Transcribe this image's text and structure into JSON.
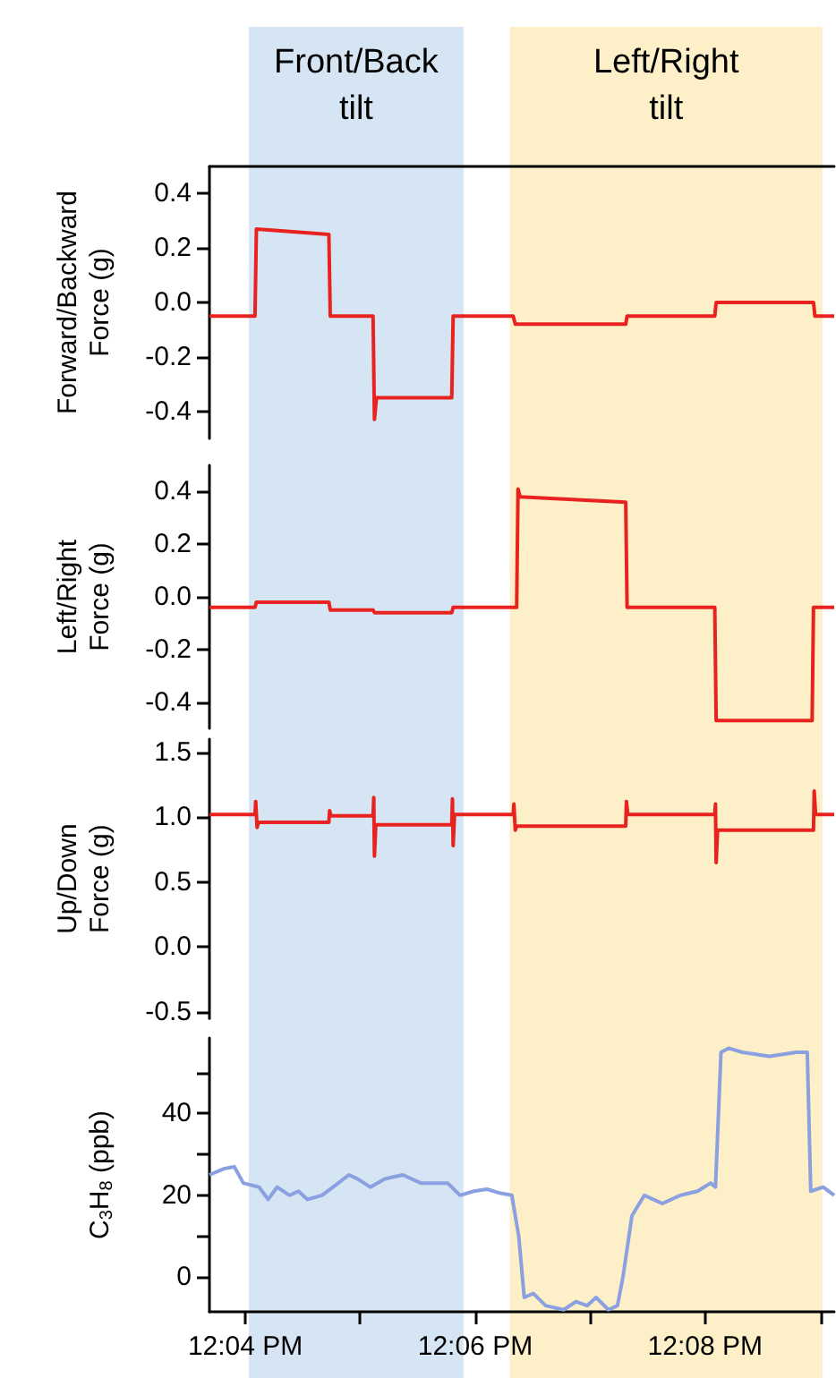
{
  "chart_data": [
    {
      "type": "line",
      "ylabel": "Forward/Backward\nForce (g)",
      "xlim": [
        12.0615,
        12.152
      ],
      "ylim": [
        -0.5,
        0.5
      ],
      "yticks": [
        -0.4,
        -0.2,
        {
          "value": 0,
          "label": "0.0"
        },
        0.2,
        0.4
      ],
      "tick_labels": "y",
      "bands": [
        {
          "axis": "x",
          "from": 12.0672,
          "to": 12.0983,
          "label": "Front/Back\ntilt",
          "color": "#d6e5f3"
        },
        {
          "axis": "x",
          "from": 12.105,
          "to": 12.1503,
          "label": "Left/Right\ntilt",
          "color": "#fdefc7"
        }
      ],
      "series": [
        {
          "color": "#e8231f",
          "x": [
            12.0615,
            12.0681,
            12.0683,
            12.0788,
            12.079,
            12.0852,
            12.0854,
            12.0857,
            12.0966,
            12.0968,
            12.1055,
            12.1058,
            12.1218,
            12.122,
            12.1347,
            12.1349,
            12.149,
            12.1492,
            12.152
          ],
          "values": [
            -0.05,
            -0.05,
            0.27,
            0.25,
            -0.05,
            -0.05,
            -0.43,
            -0.35,
            -0.35,
            -0.05,
            -0.05,
            -0.08,
            -0.08,
            -0.05,
            -0.05,
            0.0,
            0.0,
            -0.05,
            -0.05
          ]
        }
      ]
    },
    {
      "type": "line",
      "ylabel": "Left/Right\nForce (g)",
      "xlim": [
        12.0615,
        12.152
      ],
      "ylim": [
        -0.5,
        0.5
      ],
      "yticks": [
        -0.4,
        -0.2,
        {
          "value": 0,
          "label": "0.0"
        },
        0.2,
        0.4
      ],
      "tick_labels": "y",
      "bands": [
        {
          "axis": "x",
          "from": 12.0672,
          "to": 12.0983,
          "color": "#d6e5f3"
        },
        {
          "axis": "x",
          "from": 12.105,
          "to": 12.1503,
          "color": "#fdefc7"
        }
      ],
      "series": [
        {
          "color": "#e8231f",
          "x": [
            12.0615,
            12.0681,
            12.0683,
            12.0788,
            12.079,
            12.0852,
            12.0854,
            12.0966,
            12.0968,
            12.106,
            12.1062,
            12.1065,
            12.1218,
            12.122,
            12.1347,
            12.1349,
            12.1488,
            12.149,
            12.152
          ],
          "values": [
            -0.04,
            -0.04,
            -0.02,
            -0.02,
            -0.05,
            -0.05,
            -0.06,
            -0.06,
            -0.04,
            -0.04,
            0.41,
            0.38,
            0.36,
            -0.04,
            -0.04,
            -0.47,
            -0.47,
            -0.04,
            -0.04
          ]
        }
      ]
    },
    {
      "type": "line",
      "ylabel": "Up/Down\nForce (g)",
      "xlim": [
        12.0615,
        12.152
      ],
      "ylim": [
        -0.55,
        1.6
      ],
      "yticks": [
        -0.5,
        {
          "value": 0,
          "label": "0.0"
        },
        0.5,
        {
          "value": 1,
          "label": "1.0"
        },
        1.5
      ],
      "tick_labels": "y",
      "bands": [
        {
          "axis": "x",
          "from": 12.0672,
          "to": 12.0983,
          "color": "#d6e5f3"
        },
        {
          "axis": "x",
          "from": 12.105,
          "to": 12.1503,
          "color": "#fdefc7"
        }
      ],
      "series": [
        {
          "color": "#e8231f",
          "x": [
            12.0615,
            12.0681,
            12.0682,
            12.0684,
            12.0686,
            12.0788,
            12.0789,
            12.0791,
            12.0852,
            12.0853,
            12.0854,
            12.0856,
            12.0966,
            12.0967,
            12.0968,
            12.097,
            12.1055,
            12.1056,
            12.1058,
            12.106,
            12.1218,
            12.1219,
            12.1221,
            12.1347,
            12.1348,
            12.1349,
            12.1351,
            12.149,
            12.1491,
            12.1493,
            12.152
          ],
          "values": [
            1.02,
            1.02,
            1.12,
            0.92,
            0.96,
            0.96,
            1.05,
            1.01,
            1.01,
            1.15,
            0.7,
            0.94,
            0.94,
            1.14,
            0.78,
            1.02,
            1.02,
            1.1,
            0.9,
            0.93,
            0.93,
            1.12,
            1.02,
            1.02,
            1.1,
            0.65,
            0.9,
            0.9,
            1.2,
            1.02,
            1.02
          ]
        }
      ]
    },
    {
      "type": "line",
      "ylabel": "C$_{3}$H$_{8}$ (ppb)",
      "xlim": [
        12.0615,
        12.152
      ],
      "ylim": [
        -8.5,
        58.5
      ],
      "yticks": [
        0,
        {
          "value": 10,
          "label": null
        },
        20,
        {
          "value": 30,
          "label": null
        },
        40,
        {
          "value": 50,
          "label": null
        }
      ],
      "xticks": [
        {
          "value": 12.0667,
          "label": "12:04 PM"
        },
        {
          "value": 12.0833,
          "label": null
        },
        {
          "value": 12.1,
          "label": "12:06 PM"
        },
        {
          "value": 12.1167,
          "label": null
        },
        {
          "value": 12.1333,
          "label": "12:08 PM"
        },
        {
          "value": 12.15,
          "label": null
        }
      ],
      "bands": [
        {
          "axis": "x",
          "from": 12.0672,
          "to": 12.0983,
          "color": "#d6e5f3"
        },
        {
          "axis": "x",
          "from": 12.105,
          "to": 12.1503,
          "color": "#fdefc7"
        }
      ],
      "series": [
        {
          "color": "#8aa0e0",
          "x": [
            12.0615,
            12.0636,
            12.0651,
            12.0664,
            12.0687,
            12.07,
            12.0713,
            12.0731,
            12.0744,
            12.0757,
            12.0778,
            12.0794,
            12.0817,
            12.083,
            12.0848,
            12.0869,
            12.0895,
            12.0921,
            12.096,
            12.0978,
            12.0998,
            12.1017,
            12.1037,
            12.1053,
            12.1063,
            12.1071,
            12.1084,
            12.1102,
            12.1128,
            12.1146,
            12.1162,
            12.1175,
            12.1193,
            12.1206,
            12.1214,
            12.1227,
            12.1245,
            12.1271,
            12.1297,
            12.1322,
            12.1341,
            12.1348,
            12.1356,
            12.1367,
            12.1387,
            12.1426,
            12.1465,
            12.1481,
            12.1486,
            12.1504,
            12.152
          ],
          "values": [
            25,
            26.5,
            27,
            23,
            22,
            19,
            22,
            20,
            21,
            19,
            20,
            22,
            25,
            24,
            22,
            24,
            25,
            23,
            23,
            20,
            21,
            21.5,
            20.5,
            20,
            10,
            -5,
            -4,
            -7,
            -8,
            -6,
            -7,
            -5,
            -8,
            -7,
            0,
            15,
            20,
            18,
            20,
            21,
            23,
            22,
            55,
            56,
            55,
            54,
            55,
            55,
            21,
            22,
            20
          ]
        }
      ]
    }
  ]
}
